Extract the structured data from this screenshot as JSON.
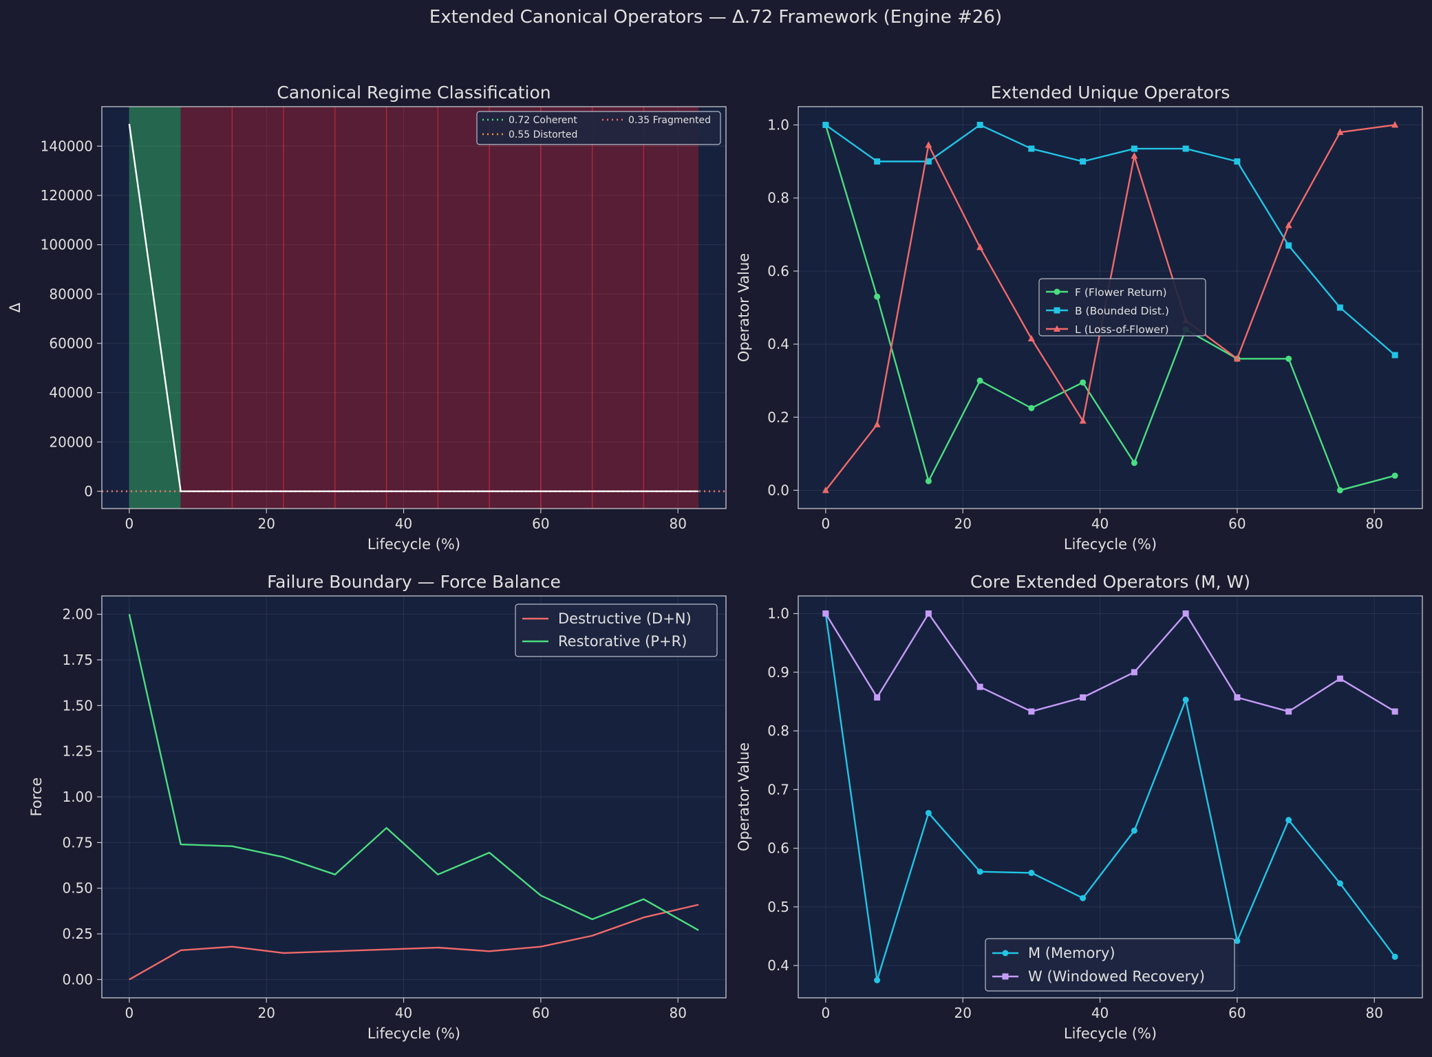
{
  "figure": {
    "suptitle": "Extended Canonical Operators — Δ.72 Framework (Engine #26)",
    "colors": {
      "background": "#1a1b2e",
      "axes_bg": "#16213e",
      "text": "#e0e0e0",
      "green": "#4ade80",
      "cyan": "#22c5e5",
      "red": "#f06a6a",
      "purple": "#c49cf5",
      "coherent_span": "#256b4f",
      "fragmented_span": "#5c1f35"
    }
  },
  "chart_data": [
    {
      "id": "regime",
      "type": "line",
      "title": "Canonical Regime Classification",
      "xlabel": "Lifecycle (%)",
      "ylabel": "Δ",
      "xlim": [
        -4,
        87
      ],
      "ylim": [
        -7000,
        156000
      ],
      "xticks": [
        0,
        20,
        40,
        60,
        80
      ],
      "yticks": [
        0,
        20000,
        40000,
        60000,
        80000,
        100000,
        120000,
        140000
      ],
      "grid": true,
      "x": [
        0,
        7.5,
        15,
        22.5,
        30,
        37.5,
        45,
        52.5,
        60,
        67.5,
        75,
        83
      ],
      "series": [
        {
          "name": "",
          "color": "#ffffff",
          "values": [
            149000,
            0.7,
            0.6,
            0.6,
            0.5,
            0.5,
            0.4,
            0.5,
            0.4,
            0.3,
            0.3,
            0.2
          ]
        }
      ],
      "hlines": [
        {
          "name": "0.72 Coherent",
          "y": 0.72,
          "color": "#4ade80"
        },
        {
          "name": "0.55 Distorted",
          "y": 0.55,
          "color": "#fb923c"
        },
        {
          "name": "0.35 Fragmented",
          "y": 0.35,
          "color": "#f06a6a"
        }
      ],
      "regime_spans": [
        {
          "regime": "Coherent",
          "x0": 0,
          "x1": 7.5
        },
        {
          "regime": "Fragmented",
          "x0": 7.5,
          "x1": 83
        }
      ],
      "legend": {
        "placement": "top-right",
        "columns": 2
      }
    },
    {
      "id": "unique",
      "type": "line",
      "title": "Extended Unique Operators",
      "xlabel": "Lifecycle (%)",
      "ylabel": "Operator Value",
      "xlim": [
        -4,
        87
      ],
      "ylim": [
        -0.05,
        1.05
      ],
      "xticks": [
        0,
        20,
        40,
        60,
        80
      ],
      "yticks": [
        0.0,
        0.2,
        0.4,
        0.6,
        0.8,
        1.0
      ],
      "grid": true,
      "x": [
        0,
        7.5,
        15,
        22.5,
        30,
        37.5,
        45,
        52.5,
        60,
        67.5,
        75,
        83
      ],
      "series": [
        {
          "name": "F (Flower Return)",
          "color": "#4ade80",
          "marker": "circle",
          "values": [
            1.0,
            0.53,
            0.025,
            0.3,
            0.225,
            0.295,
            0.075,
            0.44,
            0.36,
            0.36,
            0.0,
            0.04
          ]
        },
        {
          "name": "B (Bounded Dist.)",
          "color": "#22c5e5",
          "marker": "square",
          "values": [
            1.0,
            0.9,
            0.9,
            1.0,
            0.935,
            0.9,
            0.935,
            0.935,
            0.9,
            0.67,
            0.5,
            0.37
          ]
        },
        {
          "name": "L (Loss-of-Flower)",
          "color": "#f06a6a",
          "marker": "triangle",
          "values": [
            0.0,
            0.18,
            0.945,
            0.665,
            0.415,
            0.19,
            0.915,
            0.465,
            0.36,
            0.725,
            0.98,
            1.0
          ]
        }
      ],
      "legend": {
        "placement": "center"
      }
    },
    {
      "id": "force",
      "type": "line",
      "title": "Failure Boundary — Force Balance",
      "xlabel": "Lifecycle (%)",
      "ylabel": "Force",
      "xlim": [
        -4,
        87
      ],
      "ylim": [
        -0.1,
        2.1
      ],
      "xticks": [
        0,
        20,
        40,
        60,
        80
      ],
      "yticks": [
        0.0,
        0.25,
        0.5,
        0.75,
        1.0,
        1.25,
        1.5,
        1.75,
        2.0
      ],
      "ytick_labels": [
        "0.00",
        "0.25",
        "0.50",
        "0.75",
        "1.00",
        "1.25",
        "1.50",
        "1.75",
        "2.00"
      ],
      "grid": true,
      "x": [
        0,
        7.5,
        15,
        22.5,
        30,
        37.5,
        45,
        52.5,
        60,
        67.5,
        75,
        83
      ],
      "series": [
        {
          "name": "Destructive (D+N)",
          "color": "#f06a6a",
          "values": [
            0.0,
            0.16,
            0.18,
            0.145,
            0.155,
            0.165,
            0.175,
            0.155,
            0.18,
            0.24,
            0.34,
            0.41
          ]
        },
        {
          "name": "Restorative (P+R)",
          "color": "#4ade80",
          "values": [
            2.0,
            0.74,
            0.73,
            0.67,
            0.575,
            0.83,
            0.575,
            0.695,
            0.46,
            0.33,
            0.44,
            0.27
          ]
        }
      ],
      "legend": {
        "placement": "top-right"
      }
    },
    {
      "id": "core",
      "type": "line",
      "title": "Core Extended Operators (M, W)",
      "xlabel": "Lifecycle (%)",
      "ylabel": "Operator Value",
      "xlim": [
        -4,
        87
      ],
      "ylim": [
        0.345,
        1.03
      ],
      "xticks": [
        0,
        20,
        40,
        60,
        80
      ],
      "yticks": [
        0.4,
        0.5,
        0.6,
        0.7,
        0.8,
        0.9,
        1.0
      ],
      "grid": true,
      "x": [
        0,
        7.5,
        15,
        22.5,
        30,
        37.5,
        45,
        52.5,
        60,
        67.5,
        75,
        83
      ],
      "series": [
        {
          "name": "M (Memory)",
          "color": "#22c5e5",
          "marker": "circle",
          "values": [
            1.0,
            0.375,
            0.66,
            0.56,
            0.558,
            0.515,
            0.63,
            0.853,
            0.442,
            0.648,
            0.54,
            0.415
          ]
        },
        {
          "name": "W (Windowed Recovery)",
          "color": "#c49cf5",
          "marker": "square",
          "values": [
            1.0,
            0.857,
            1.0,
            0.875,
            0.833,
            0.857,
            0.9,
            1.0,
            0.857,
            0.833,
            0.889,
            0.833
          ]
        }
      ],
      "legend": {
        "placement": "lower-center"
      }
    }
  ]
}
